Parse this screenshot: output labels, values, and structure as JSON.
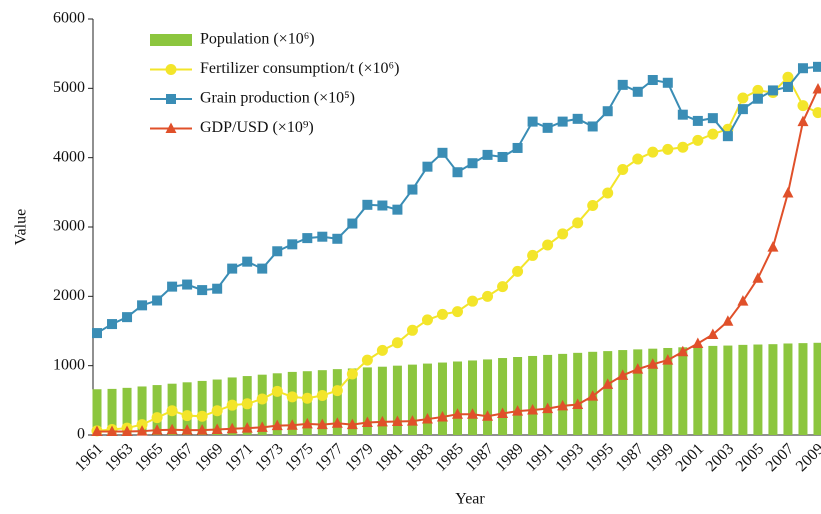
{
  "chart_data": {
    "type": "bar",
    "x_label": "Year",
    "y_label": "Value",
    "categories": [
      "1961",
      null,
      "1963",
      null,
      "1965",
      null,
      "1967",
      null,
      "1969",
      null,
      "1971",
      null,
      "1973",
      null,
      "1975",
      null,
      "1977",
      null,
      "1979",
      null,
      "1981",
      null,
      "1983",
      null,
      "1985",
      null,
      "1987",
      null,
      "1989",
      null,
      "1991",
      null,
      "1993",
      null,
      "1995",
      null,
      "1987",
      null,
      "1999",
      null,
      "2001",
      null,
      "2003",
      null,
      "2005",
      null,
      "2007",
      null,
      "2009"
    ],
    "ylim": [
      0,
      6000
    ],
    "yticks": [
      0,
      1000,
      2000,
      3000,
      4000,
      5000,
      6000
    ],
    "series": [
      {
        "name": "Population (×10⁶)",
        "type": "bar",
        "color": "#8cc63e",
        "values": [
          660,
          665,
          680,
          700,
          720,
          740,
          760,
          780,
          800,
          830,
          850,
          870,
          890,
          910,
          920,
          935,
          950,
          960,
          975,
          985,
          1000,
          1015,
          1030,
          1045,
          1060,
          1075,
          1090,
          1110,
          1125,
          1140,
          1155,
          1170,
          1185,
          1200,
          1210,
          1225,
          1235,
          1245,
          1255,
          1265,
          1275,
          1285,
          1290,
          1300,
          1305,
          1310,
          1320,
          1325,
          1330
        ]
      },
      {
        "name": "Fertilizer consumption/t (×10⁶)",
        "type": "line",
        "marker": "circle",
        "color": "#f3e52a",
        "values": [
          60,
          80,
          100,
          150,
          250,
          350,
          280,
          270,
          350,
          430,
          450,
          520,
          630,
          550,
          530,
          570,
          640,
          880,
          1080,
          1220,
          1330,
          1510,
          1660,
          1740,
          1780,
          1930,
          2000,
          2140,
          2360,
          2590,
          2740,
          2900,
          3060,
          3310,
          3490,
          3830,
          3980,
          4080,
          4120,
          4150,
          4250,
          4340,
          4410,
          4860,
          4970,
          4940,
          5160,
          4750,
          4650
        ]
      },
      {
        "name": "Grain production (×10⁵)",
        "type": "line",
        "marker": "square",
        "color": "#3a8db5",
        "values": [
          1470,
          1600,
          1700,
          1870,
          1940,
          2140,
          2170,
          2090,
          2110,
          2400,
          2500,
          2400,
          2650,
          2750,
          2840,
          2860,
          2830,
          3050,
          3320,
          3310,
          3250,
          3540,
          3870,
          4070,
          3790,
          3920,
          4040,
          4010,
          4140,
          4520,
          4430,
          4520,
          4560,
          4450,
          4670,
          5050,
          4950,
          5120,
          5080,
          4620,
          4530,
          4570,
          4310,
          4700,
          4850,
          4970,
          5020,
          5290,
          5310
        ]
      },
      {
        "name": "GDP/USD (×10⁹)",
        "type": "line",
        "marker": "triangle",
        "color": "#e0502a",
        "values": [
          50,
          50,
          50,
          55,
          70,
          75,
          70,
          70,
          80,
          90,
          100,
          110,
          135,
          140,
          160,
          150,
          170,
          150,
          180,
          190,
          195,
          200,
          230,
          260,
          300,
          300,
          270,
          310,
          345,
          360,
          380,
          420,
          440,
          560,
          730,
          860,
          950,
          1020,
          1080,
          1200,
          1320,
          1450,
          1640,
          1930,
          2260,
          2710,
          3490,
          4520,
          4990
        ]
      }
    ]
  }
}
